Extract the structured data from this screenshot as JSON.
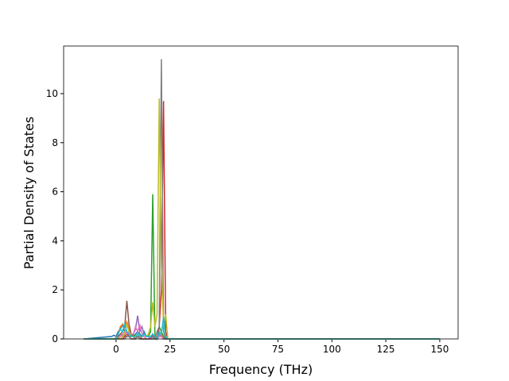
{
  "chart_data": {
    "type": "line",
    "xlabel": "Frequency (THz)",
    "ylabel": "Partial Density of States",
    "x": [
      -15,
      -2,
      -1,
      0,
      1,
      2,
      3,
      4,
      5,
      6,
      7,
      8,
      9,
      10,
      11,
      12,
      13,
      14,
      15,
      16,
      17,
      18,
      19,
      20,
      21,
      22,
      23,
      24,
      150
    ],
    "series": [
      {
        "color": "#1f77b4",
        "values": [
          0,
          0.1,
          0.15,
          0.1,
          0.3,
          0.4,
          0.6,
          0.3,
          0.2,
          0.2,
          0.1,
          0.1,
          0.2,
          0.3,
          0.2,
          0.1,
          0.3,
          0.1,
          0.1,
          0,
          0.1,
          0,
          0,
          0.2,
          0.1,
          0.1,
          0,
          0,
          0
        ]
      },
      {
        "color": "#ff7f0e",
        "values": [
          0,
          0,
          0,
          0.05,
          0.2,
          0.5,
          0.6,
          0.5,
          0.7,
          0.4,
          0.2,
          0.1,
          0.1,
          0.2,
          0.1,
          0.1,
          0.1,
          0,
          0,
          0,
          0.1,
          0,
          0,
          0.3,
          0.2,
          0,
          0,
          0,
          0
        ]
      },
      {
        "color": "#2ca02c",
        "values": [
          0,
          0,
          0,
          0,
          0,
          0.1,
          0.2,
          0.1,
          0.1,
          0.1,
          0.1,
          0.2,
          0.1,
          0.1,
          0.1,
          0.1,
          0.2,
          0.1,
          0.1,
          0.3,
          5.9,
          0.2,
          0,
          0.5,
          0.3,
          0.1,
          0,
          0,
          0
        ]
      },
      {
        "color": "#d62728",
        "values": [
          0,
          0,
          0,
          0,
          0,
          0,
          0,
          0.1,
          0.2,
          0.1,
          0,
          0,
          0,
          0.1,
          0.1,
          0,
          0,
          0,
          0,
          0,
          0.2,
          0,
          0,
          0.5,
          2,
          9.7,
          0.3,
          0,
          0
        ]
      },
      {
        "color": "#9467bd",
        "values": [
          0,
          0,
          0,
          0,
          0.1,
          0.2,
          0.1,
          0.2,
          0.3,
          0.2,
          0.1,
          0.2,
          0.4,
          0.95,
          0.3,
          0.5,
          0.2,
          0.1,
          0.1,
          0,
          0.1,
          0,
          0,
          0.2,
          0.1,
          0,
          0,
          0,
          0
        ]
      },
      {
        "color": "#8c564b",
        "values": [
          0,
          0,
          0,
          0,
          0.1,
          0.2,
          0.3,
          0.5,
          1.55,
          0.6,
          0.2,
          0.1,
          0,
          0.1,
          0,
          0,
          0,
          0,
          0,
          0,
          0,
          0,
          0,
          0.1,
          0.1,
          0,
          0,
          0,
          0
        ]
      },
      {
        "color": "#e377c2",
        "values": [
          0,
          0,
          0,
          0,
          0,
          0.1,
          0.2,
          0.3,
          0.2,
          0.3,
          0.2,
          0.2,
          0.5,
          0.3,
          0.6,
          0.2,
          0.1,
          0,
          0,
          0,
          0.1,
          0,
          0,
          0.1,
          0.1,
          0,
          0,
          0,
          0
        ]
      },
      {
        "color": "#7f7f7f",
        "values": [
          0,
          0,
          0,
          0,
          0,
          0,
          0,
          0,
          0.1,
          0.1,
          0,
          0,
          0,
          0.1,
          0,
          0,
          0,
          0,
          0,
          0,
          0.1,
          0,
          0.3,
          0.5,
          11.4,
          0.3,
          0,
          0,
          0
        ]
      },
      {
        "color": "#bcbd22",
        "values": [
          0,
          0,
          0,
          0,
          0,
          0,
          0.1,
          0.2,
          0.6,
          0.3,
          0.1,
          0.1,
          0.1,
          0.2,
          0.1,
          0.1,
          0.2,
          0.1,
          0.2,
          0.5,
          1.5,
          0.5,
          1,
          9.8,
          3,
          0.5,
          1,
          0,
          0
        ]
      },
      {
        "color": "#17becf",
        "values": [
          0,
          0,
          0,
          0,
          0.2,
          0.4,
          0.3,
          0.6,
          0.3,
          0.2,
          0.1,
          0.1,
          0.1,
          0.2,
          0.1,
          0.1,
          0.2,
          0.1,
          0.1,
          0.1,
          0.2,
          0.1,
          0,
          0.3,
          0.2,
          0.9,
          0.1,
          0,
          0
        ]
      }
    ],
    "xlim": [
      -24.3,
      158.5
    ],
    "xticks": [
      0,
      25,
      50,
      75,
      100,
      125,
      150
    ],
    "ylim": [
      0,
      11.94
    ],
    "yticks": [
      0,
      2,
      4,
      6,
      8,
      10
    ]
  }
}
